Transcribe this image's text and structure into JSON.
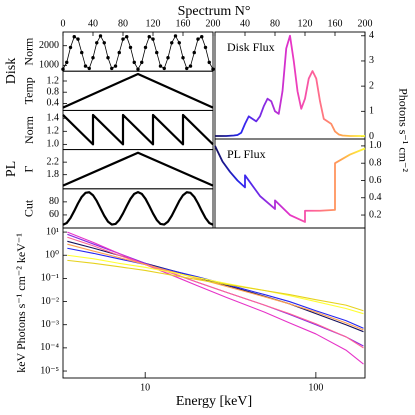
{
  "figure": {
    "xlabel": "Spectrum N°",
    "xlim": [
      0,
      200
    ],
    "xticks": [
      0,
      40,
      80,
      120,
      160,
      200
    ],
    "right_ylabel": "Photons s⁻¹ cm⁻²",
    "groups": [
      "Disk",
      "PL"
    ],
    "colormap": [
      "#14105c",
      "#2626f0",
      "#8a2be2",
      "#e632c8",
      "#ff6496",
      "#ffa050",
      "#ffff33"
    ]
  },
  "chart_data": [
    {
      "type": "line",
      "ylabel": "Norm",
      "color": "#000000",
      "markers": true,
      "x": [
        0,
        5,
        10,
        15,
        20,
        25,
        30,
        35,
        40,
        45,
        50,
        55,
        60,
        65,
        70,
        75,
        80,
        85,
        90,
        95,
        100,
        105,
        110,
        115,
        120,
        125,
        130,
        135,
        140,
        145,
        150,
        155,
        160,
        165,
        170,
        175,
        180,
        185,
        190,
        195,
        200
      ],
      "values": [
        800,
        1150,
        1913,
        2458,
        2338,
        1650,
        962,
        842,
        1387,
        2150,
        2500,
        2150,
        1387,
        842,
        962,
        1650,
        2338,
        2458,
        1913,
        1150,
        800,
        1150,
        1913,
        2458,
        2338,
        1650,
        962,
        842,
        1387,
        2150,
        2500,
        2150,
        1387,
        842,
        962,
        1650,
        2338,
        2458,
        1913,
        1150,
        800
      ],
      "ylim": [
        700,
        2700
      ],
      "yticks": [
        1000,
        2000
      ]
    },
    {
      "type": "line",
      "ylabel": "Temp",
      "color": "#000000",
      "x": [
        0,
        100,
        200
      ],
      "values": [
        0.25,
        1.45,
        0.25
      ],
      "ylim": [
        0.15,
        1.55
      ],
      "yticks": [
        0.4,
        0.8,
        1.2
      ]
    },
    {
      "type": "line",
      "ylabel": "Norm",
      "color": "#000000",
      "x": [
        0,
        40,
        40,
        80,
        80,
        120,
        120,
        160,
        160,
        200
      ],
      "values": [
        1.45,
        1,
        1.45,
        1,
        1.45,
        1,
        1.45,
        1,
        1.45,
        1
      ],
      "ylim": [
        0.92,
        1.52
      ],
      "yticks": [
        {
          "value": 1,
          "label": "1.0"
        },
        1.2,
        1.4
      ]
    },
    {
      "type": "line",
      "ylabel": "Γ",
      "color": "#000000",
      "x": [
        0,
        100,
        200
      ],
      "values": [
        1.45,
        2.5,
        1.45
      ],
      "ylim": [
        1.35,
        2.6
      ],
      "yticks": [
        1.8,
        2.2
      ]
    },
    {
      "type": "line",
      "ylabel": "Cut",
      "color": "#000000",
      "x": [
        0,
        5,
        10,
        15,
        20,
        25,
        30,
        35,
        40,
        45,
        50,
        55,
        60,
        65,
        70,
        75,
        80,
        85,
        90,
        95,
        100,
        105,
        110,
        115,
        120,
        125,
        130,
        135,
        140,
        145,
        150,
        155,
        160,
        165,
        170,
        175,
        180,
        185,
        190,
        195,
        200
      ],
      "values": [
        45,
        47.7,
        55.3,
        66.1,
        77.7,
        87.7,
        93.8,
        94.7,
        90.2,
        81.4,
        70,
        58.7,
        49.8,
        45.3,
        46.2,
        52.3,
        62.3,
        73.9,
        84.7,
        92.3,
        95,
        92.3,
        84.7,
        73.9,
        62.3,
        52.3,
        46.2,
        45.3,
        49.8,
        58.7,
        70,
        81.4,
        90.2,
        94.7,
        93.8,
        87.7,
        77.7,
        66.1,
        55.3,
        47.7,
        45
      ],
      "ylim": [
        40,
        100
      ],
      "yticks": [
        60,
        80
      ]
    },
    {
      "type": "line",
      "label": "Disk Flux",
      "gradient": true,
      "x": [
        0,
        5,
        10,
        15,
        20,
        25,
        30,
        35,
        40,
        45,
        50,
        55,
        60,
        65,
        70,
        75,
        80,
        85,
        90,
        95,
        100,
        105,
        110,
        115,
        120,
        125,
        130,
        135,
        140,
        145,
        150,
        155,
        160,
        165,
        170,
        175,
        180,
        185,
        190,
        195,
        200
      ],
      "values": [
        0.02,
        0.02,
        0.02,
        0.02,
        0.03,
        0.04,
        0.06,
        0.15,
        0.5,
        0.8,
        0.7,
        0.6,
        0.8,
        1.2,
        1.5,
        1.4,
        1,
        0.9,
        1.8,
        3.5,
        4,
        3,
        1.8,
        1.1,
        1.5,
        2.3,
        2.6,
        2.3,
        1.4,
        0.7,
        0.6,
        0.5,
        0.2,
        0.08,
        0.04,
        0.03,
        0.02,
        0.02,
        0.02,
        0.02,
        0.02
      ],
      "ylim": [
        -0.1,
        4.15
      ],
      "yticks": [
        0,
        1,
        2,
        3,
        4
      ]
    },
    {
      "type": "line",
      "label": "PL Flux",
      "gradient": true,
      "x": [
        0,
        10,
        20,
        30,
        40,
        40,
        60,
        80,
        80,
        100,
        120,
        120,
        140,
        160,
        160,
        180,
        200
      ],
      "values": [
        1,
        0.82,
        0.7,
        0.6,
        0.52,
        0.66,
        0.42,
        0.27,
        0.37,
        0.2,
        0.12,
        0.25,
        0.25,
        0.26,
        0.8,
        0.9,
        0.97
      ],
      "ylim": [
        0.05,
        1.08
      ],
      "yticks": [
        0.2,
        0.4,
        0.6,
        0.8,
        {
          "value": 1,
          "label": "1.0"
        }
      ]
    },
    {
      "type": "line",
      "xlabel": "Energy [keV]",
      "ylabel": "keV Photons s⁻¹ cm⁻² keV⁻¹",
      "xscale": "log",
      "yscale": "log",
      "xlim": [
        3.3,
        194
      ],
      "ylim": [
        5e-06,
        15
      ],
      "xticks": [
        10,
        100
      ],
      "yticks": [
        {
          "value": 1e-05,
          "label": "10⁻⁵"
        },
        {
          "value": 0.0001,
          "label": "10⁻⁴"
        },
        {
          "value": 0.001,
          "label": "10⁻³"
        },
        {
          "value": 0.01,
          "label": "10⁻²"
        },
        {
          "value": 0.1,
          "label": "10⁻¹"
        },
        {
          "value": 1,
          "label": "10⁰"
        },
        {
          "value": 10,
          "label": "10¹"
        }
      ],
      "x": [
        3.5,
        5,
        7,
        10,
        15,
        20,
        30,
        50,
        70,
        100,
        150,
        190
      ],
      "series": [
        {
          "color": "#14105c",
          "values": [
            4,
            2,
            1,
            0.45,
            0.2,
            0.11,
            0.05,
            0.017,
            0.008,
            0.003,
            0.001,
            0.0005
          ]
        },
        {
          "color": "#2626f0",
          "values": [
            2,
            1.2,
            0.7,
            0.4,
            0.2,
            0.12,
            0.055,
            0.02,
            0.01,
            0.004,
            0.0015,
            0.0007
          ]
        },
        {
          "color": "#8a2be2",
          "values": [
            8,
            3,
            1.2,
            0.45,
            0.15,
            0.07,
            0.025,
            0.007,
            0.0028,
            0.001,
            0.0003,
            0.00012
          ]
        },
        {
          "color": "#e632c8",
          "values": [
            10,
            3.5,
            1.2,
            0.4,
            0.12,
            0.05,
            0.015,
            0.0035,
            0.0012,
            0.0004,
            8e-05,
            2e-05
          ]
        },
        {
          "color": "#ff6496",
          "values": [
            6,
            2.5,
            1,
            0.4,
            0.15,
            0.07,
            0.025,
            0.007,
            0.003,
            0.0011,
            0.0003,
            0.0001
          ]
        },
        {
          "color": "#ffa050",
          "values": [
            3,
            1.5,
            0.8,
            0.4,
            0.18,
            0.1,
            0.045,
            0.016,
            0.008,
            0.0035,
            0.0012,
            0.0006
          ]
        },
        {
          "color": "#ffff33",
          "values": [
            1,
            0.7,
            0.45,
            0.3,
            0.17,
            0.11,
            0.06,
            0.03,
            0.018,
            0.01,
            0.005,
            0.003
          ]
        },
        {
          "color": "#e6d21e",
          "values": [
            0.6,
            0.45,
            0.32,
            0.22,
            0.13,
            0.09,
            0.055,
            0.03,
            0.02,
            0.012,
            0.007,
            0.004
          ]
        }
      ]
    }
  ]
}
